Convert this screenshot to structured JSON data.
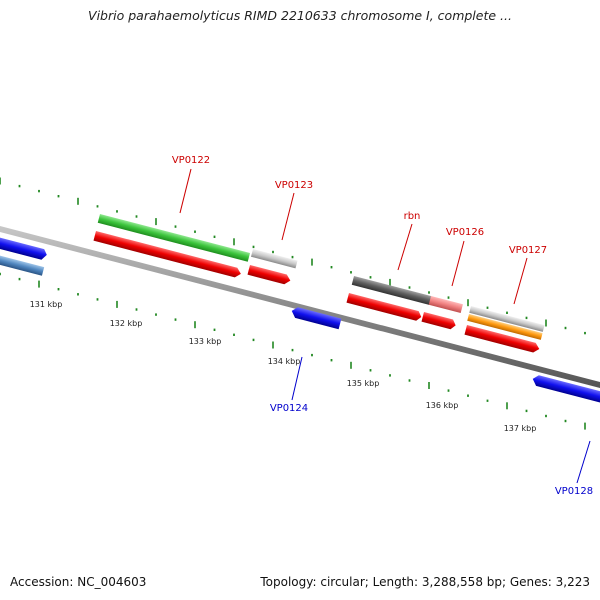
{
  "title": "Vibrio parahaemolyticus RIMD 2210633 chromosome I, complete ...",
  "footer": {
    "accession": "Accession: NC_004603",
    "summary": "Topology: circular; Length: 3,288,558 bp; Genes: 3,223"
  },
  "colors": {
    "red_label": "#cc0000",
    "blue_label": "#0000cc",
    "tick_green": "#228822",
    "backbone": "#888888"
  },
  "tick_labels": [
    "131 kbp",
    "132 kbp",
    "133 kbp",
    "134 kbp",
    "135 kbp",
    "136 kbp",
    "137 kbp"
  ],
  "gene_labels": {
    "vp0122": "VP0122",
    "vp0123": "VP0123",
    "rbn": "rbn",
    "vp0126": "VP0126",
    "vp0127": "VP0127",
    "vp0124": "VP0124",
    "vp0128": "VP0128"
  }
}
